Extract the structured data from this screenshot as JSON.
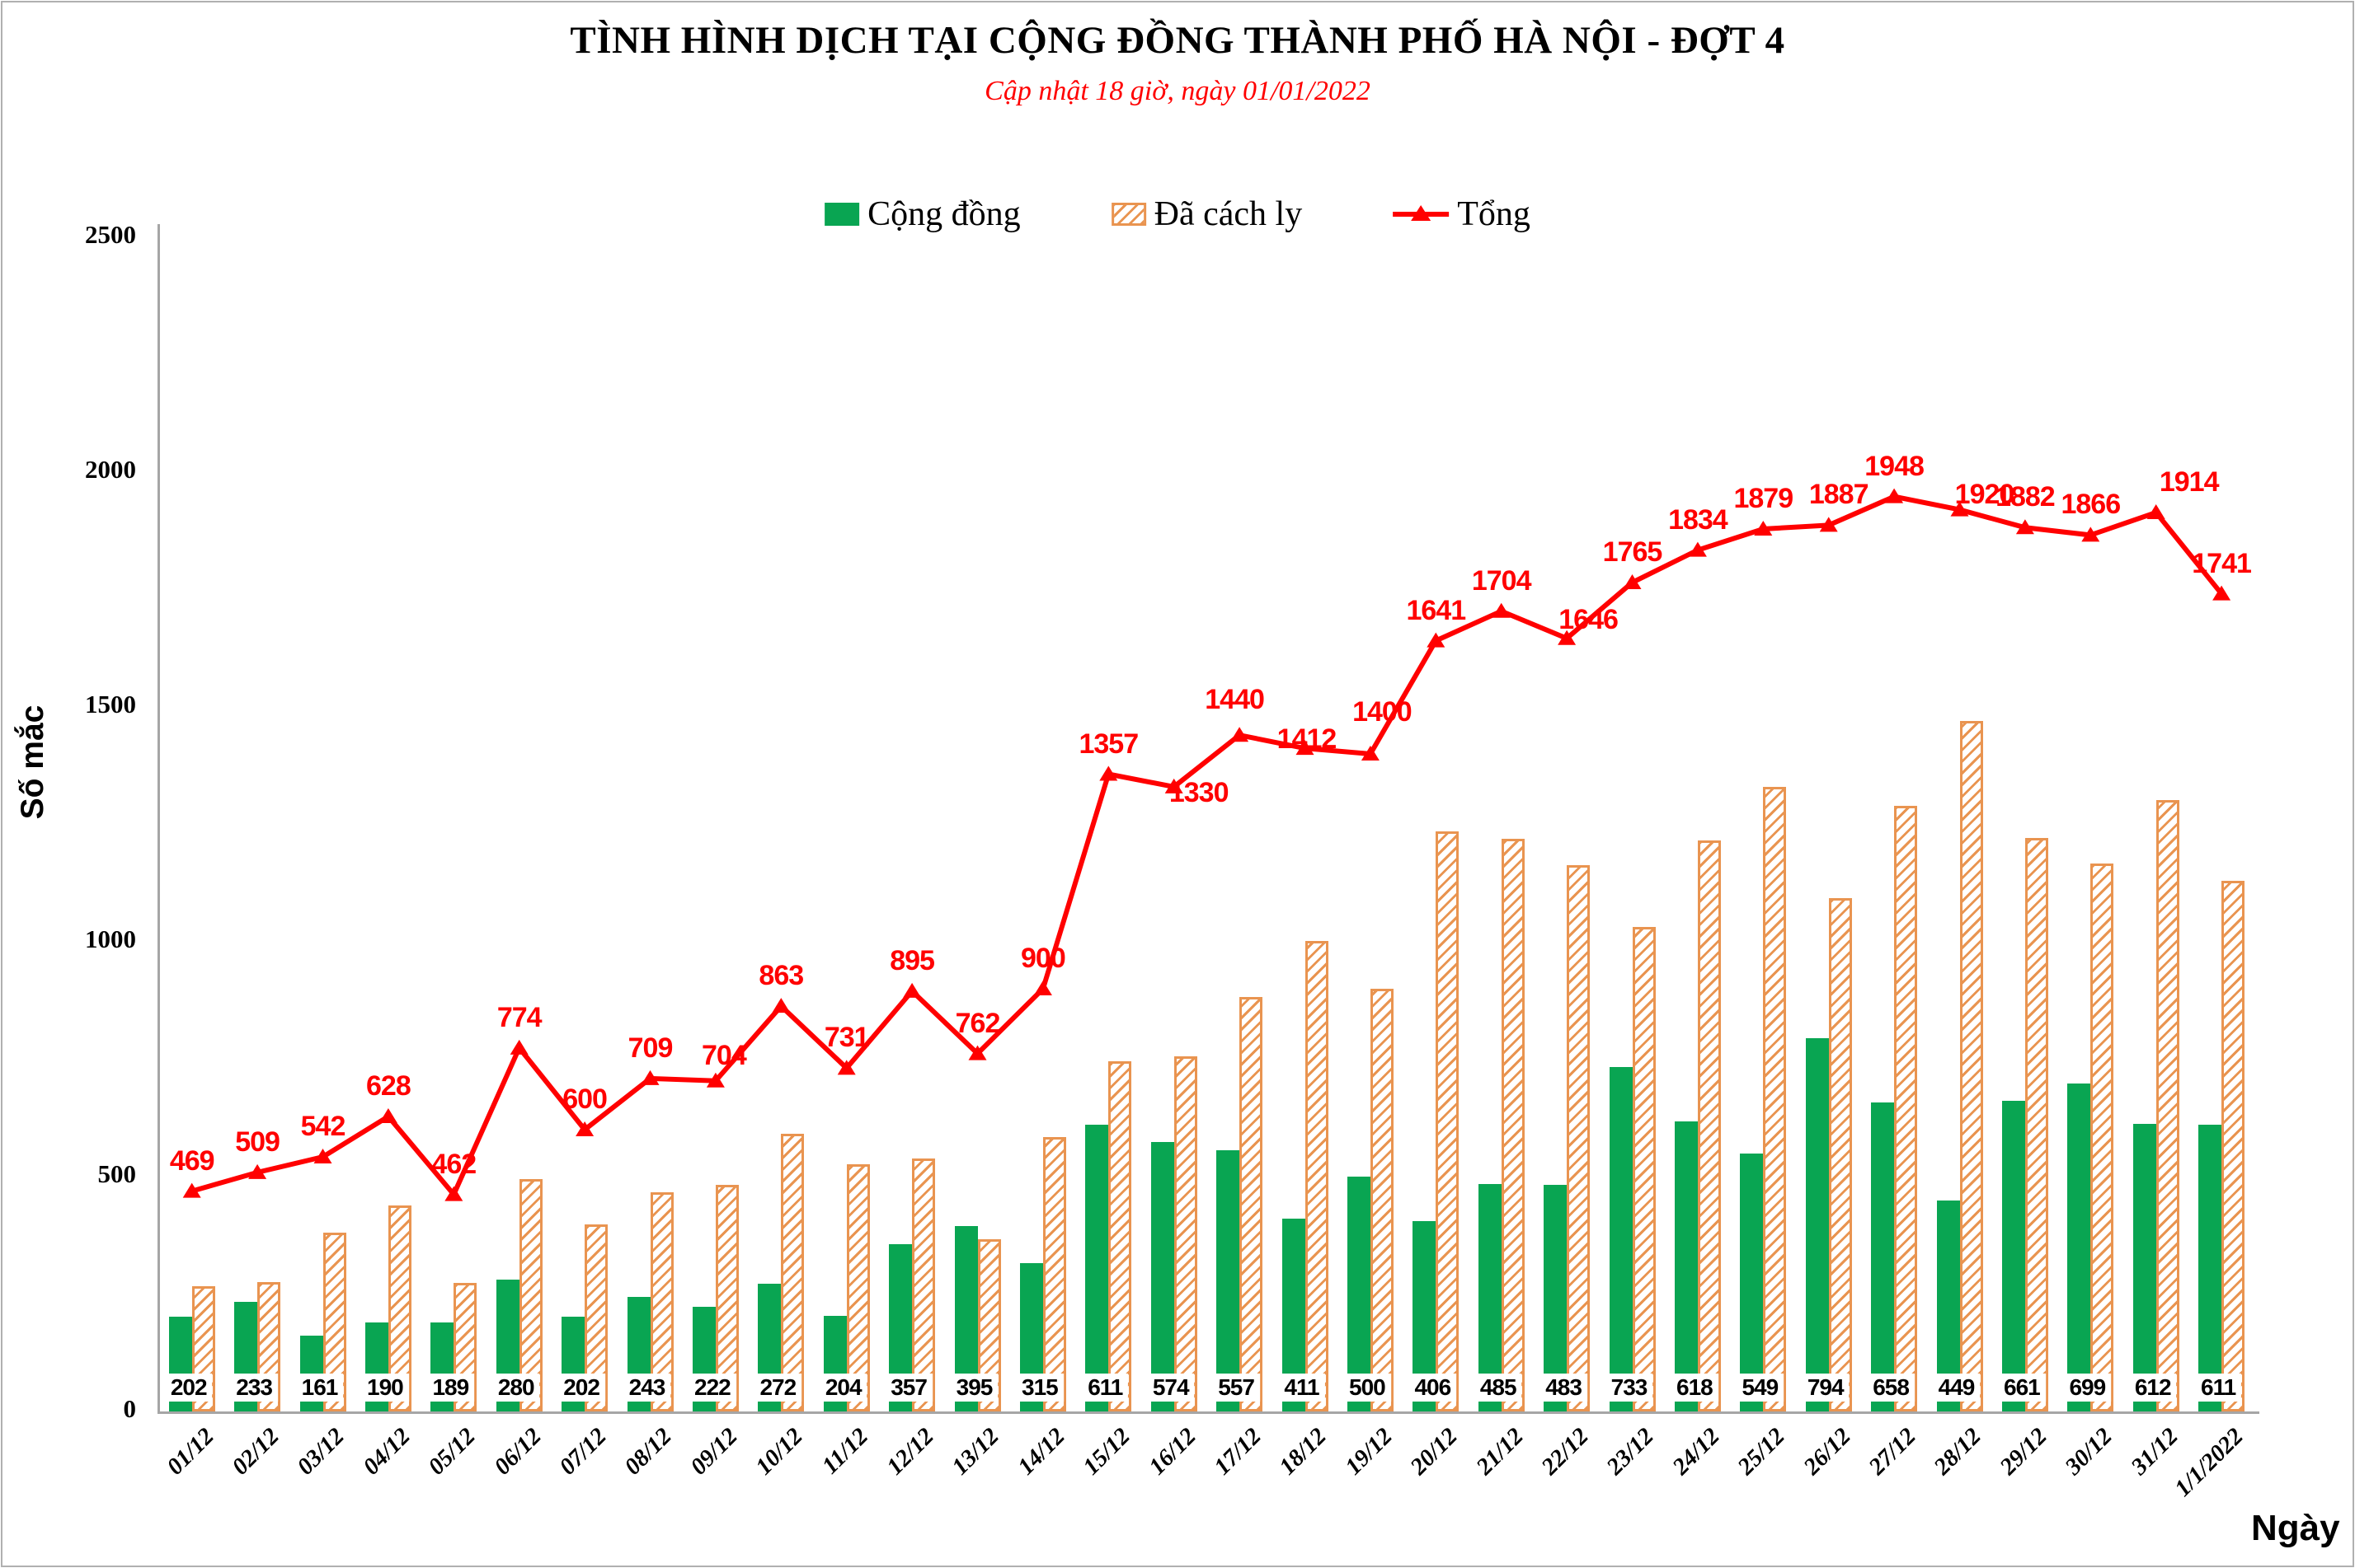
{
  "header": {
    "title": "TÌNH HÌNH DỊCH TẠI CỘNG ĐỒNG THÀNH PHỐ HÀ NỘI - ĐỢT 4",
    "subtitle": "Cập nhật 18 giờ, ngày 01/01/2022"
  },
  "legend": {
    "community": "Cộng đồng",
    "quarantined": "Đã cách ly",
    "total": "Tổng"
  },
  "axes": {
    "y_title": "Số mắc",
    "x_title": "Ngày",
    "y_ticks": [
      0,
      500,
      1000,
      1500,
      2000,
      2500
    ],
    "y_max": 2500
  },
  "colors": {
    "community": "#09A552",
    "quarantined": "#E99450",
    "total": "#FF0000",
    "axis": "#A6A6A6",
    "subtitle": "#FF0000"
  },
  "chart_data": {
    "type": "bar",
    "subtype": "grouped-bars-with-line",
    "title": "TÌNH HÌNH DỊCH TẠI CỘNG ĐỒNG THÀNH PHỐ HÀ NỘI - ĐỢT 4",
    "subtitle": "Cập nhật 18 giờ, ngày 01/01/2022",
    "xlabel": "Ngày",
    "ylabel": "Số mắc",
    "ylim": [
      0,
      2500
    ],
    "grid": false,
    "legend_position": "top",
    "categories": [
      "01/12",
      "02/12",
      "03/12",
      "04/12",
      "05/12",
      "06/12",
      "07/12",
      "08/12",
      "09/12",
      "10/12",
      "11/12",
      "12/12",
      "13/12",
      "14/12",
      "15/12",
      "16/12",
      "17/12",
      "18/12",
      "19/12",
      "20/12",
      "21/12",
      "22/12",
      "23/12",
      "24/12",
      "25/12",
      "26/12",
      "27/12",
      "28/12",
      "29/12",
      "30/12",
      "31/12",
      "1/1/2022"
    ],
    "series": [
      {
        "name": "Cộng đồng",
        "type": "bar",
        "color": "#09A552",
        "values": [
          202,
          233,
          161,
          190,
          189,
          280,
          202,
          243,
          222,
          272,
          204,
          357,
          395,
          315,
          611,
          574,
          557,
          411,
          500,
          406,
          485,
          483,
          733,
          618,
          549,
          794,
          658,
          449,
          661,
          699,
          612,
          611
        ],
        "labels_shown": true
      },
      {
        "name": "Đã cách ly",
        "type": "bar",
        "pattern": "diagonal-hatch",
        "color": "#E99450",
        "values": [
          267,
          276,
          381,
          438,
          273,
          494,
          398,
          466,
          482,
          591,
          527,
          538,
          367,
          585,
          746,
          756,
          883,
          1001,
          900,
          1235,
          1219,
          1163,
          1032,
          1216,
          1330,
          1093,
          1290,
          1471,
          1221,
          1167,
          1302,
          1130
        ],
        "labels_shown": false
      },
      {
        "name": "Tổng",
        "type": "line",
        "color": "#FF0000",
        "marker": "triangle",
        "values": [
          469,
          509,
          542,
          628,
          462,
          774,
          600,
          709,
          704,
          863,
          731,
          895,
          762,
          900,
          1357,
          1330,
          1440,
          1412,
          1400,
          1641,
          1704,
          1646,
          1765,
          1834,
          1879,
          1887,
          1948,
          1920,
          1882,
          1866,
          1914,
          1741
        ],
        "labels_shown": true
      }
    ]
  }
}
